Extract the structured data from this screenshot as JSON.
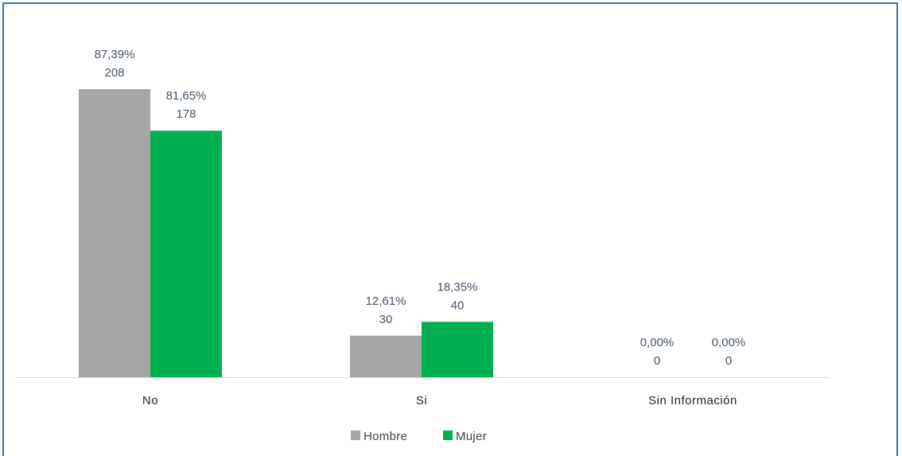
{
  "chart_data": {
    "type": "bar",
    "categories": [
      "No",
      "Si",
      "Sin Información"
    ],
    "series": [
      {
        "name": "Hombre",
        "color": "#a6a6a6",
        "values": [
          208,
          30,
          0
        ],
        "percents": [
          "87,39%",
          "12,61%",
          "0,00%"
        ]
      },
      {
        "name": "Mujer",
        "color": "#00b050",
        "values": [
          178,
          40,
          0
        ],
        "percents": [
          "81,65%",
          "18,35%",
          "0,00%"
        ]
      }
    ],
    "title": "",
    "xlabel": "",
    "ylabel": "",
    "ylim": [
      0,
      208
    ],
    "grid": false,
    "legend_position": "bottom",
    "frame_color": "#2e75b6",
    "axis_color": "#d9d9d9"
  }
}
